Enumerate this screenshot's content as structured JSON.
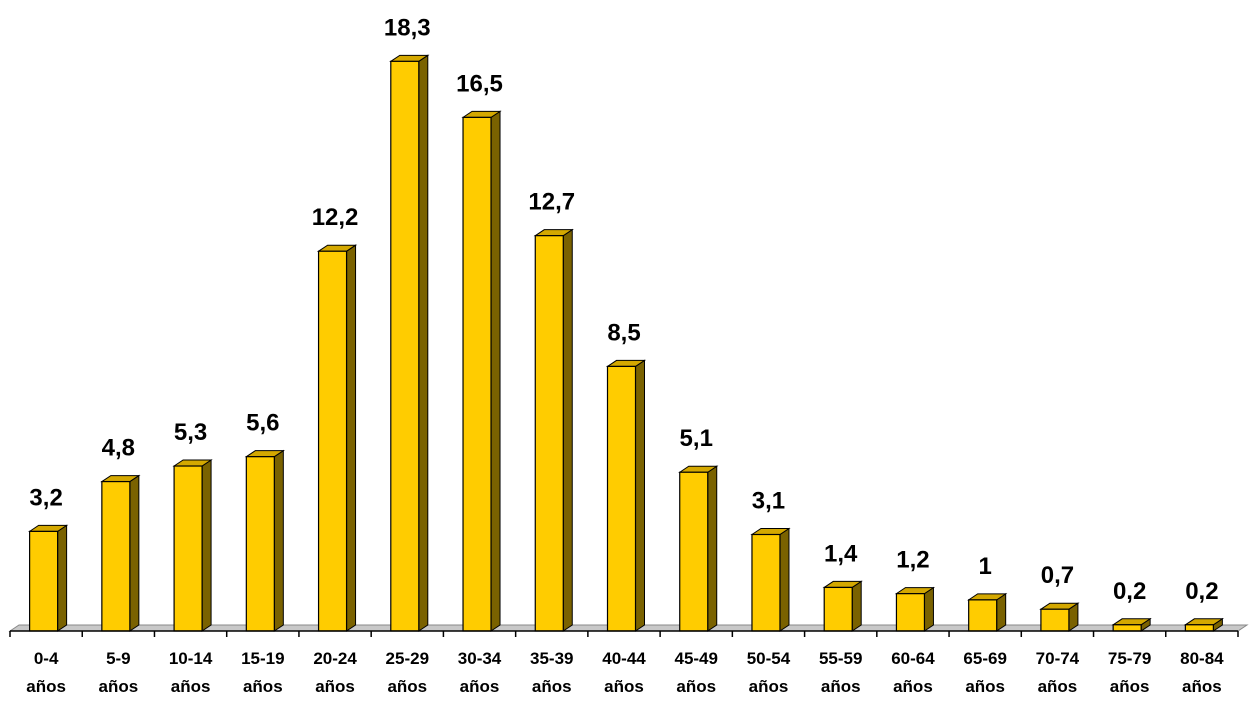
{
  "chart_data": {
    "type": "bar",
    "title": "",
    "xlabel": "",
    "ylabel": "",
    "categories": [
      [
        "0-4",
        "años"
      ],
      [
        "5-9",
        "años"
      ],
      [
        "10-14",
        "años"
      ],
      [
        "15-19",
        "años"
      ],
      [
        "20-24",
        "años"
      ],
      [
        "25-29",
        "años"
      ],
      [
        "30-34",
        "años"
      ],
      [
        "35-39",
        "años"
      ],
      [
        "40-44",
        "años"
      ],
      [
        "45-49",
        "años"
      ],
      [
        "50-54",
        "años"
      ],
      [
        "55-59",
        "años"
      ],
      [
        "60-64",
        "años"
      ],
      [
        "65-69",
        "años"
      ],
      [
        "70-74",
        "años"
      ],
      [
        "75-79",
        "años"
      ],
      [
        "80-84",
        "años"
      ]
    ],
    "values": [
      3.2,
      4.8,
      5.3,
      5.6,
      12.2,
      18.3,
      16.5,
      12.7,
      8.5,
      5.1,
      3.1,
      1.4,
      1.2,
      1,
      0.7,
      0.2,
      0.2
    ],
    "value_labels": [
      "3,2",
      "4,8",
      "5,3",
      "5,6",
      "12,2",
      "18,3",
      "16,5",
      "12,7",
      "8,5",
      "5,1",
      "3,1",
      "1,4",
      "1,2",
      "1",
      "0,7",
      "0,2",
      "0,2"
    ],
    "ylim": [
      0,
      18.6
    ],
    "grid": false,
    "legend": "none",
    "style": "3d-column",
    "colors": {
      "bar_front": "#ffcc00",
      "bar_top": "#d4a800",
      "bar_side": "#7a6200",
      "outline": "#000000",
      "floor": "#c8c8c8"
    }
  }
}
